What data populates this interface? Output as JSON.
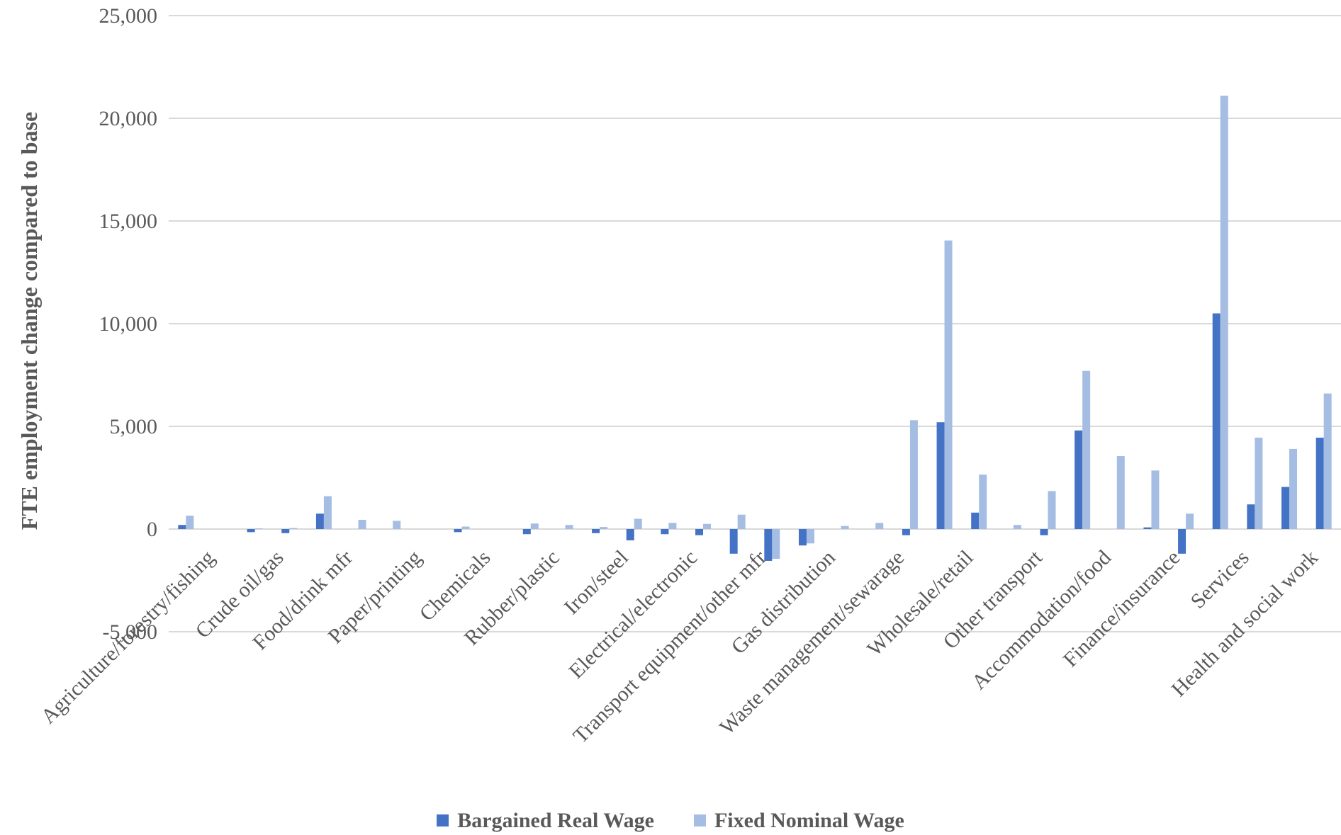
{
  "colors": {
    "bargained": "#4472C4",
    "fixed": "#A5BDE3",
    "grid": "#D9D9D9",
    "text": "#595959"
  },
  "chart_data": {
    "type": "bar",
    "title": "",
    "xlabel": "",
    "ylabel": "FTE employment change compared to base",
    "ylim": [
      -5000,
      25000
    ],
    "yticks": [
      -5000,
      0,
      5000,
      10000,
      15000,
      20000,
      25000
    ],
    "ytick_labels": [
      "-5,000",
      "0",
      "5,000",
      "10,000",
      "15,000",
      "20,000",
      "25,000"
    ],
    "grid": true,
    "legend_position": "bottom",
    "categories": [
      "Agriculture/forestry/fishing",
      "",
      "Crude oil/gas",
      "",
      "Food/drink mfr",
      "",
      "Paper/printing",
      "",
      "Chemicals",
      "",
      "Rubber/plastic",
      "",
      "Iron/steel",
      "",
      "Electrical/electronic",
      "",
      "Transport equipment/other mfr",
      "",
      "Gas distribution",
      "",
      "Waste management/sewarage",
      "",
      "Wholesale/retail",
      "",
      "Other transport",
      "",
      "Accommodation/food",
      "",
      "Finance/insurance",
      "",
      "Services",
      "",
      "Health and social work",
      ""
    ],
    "series": [
      {
        "name": "Bargained Real Wage",
        "values": [
          200,
          0,
          -150,
          -200,
          750,
          0,
          0,
          0,
          -150,
          0,
          -250,
          0,
          -200,
          -550,
          -250,
          -300,
          -1200,
          -1550,
          -800,
          0,
          0,
          -300,
          5200,
          800,
          0,
          -300,
          4800,
          0,
          80,
          -1200,
          10500,
          1200,
          2050,
          4450
        ]
      },
      {
        "name": "Fixed Nominal Wage",
        "values": [
          650,
          0,
          30,
          50,
          1600,
          450,
          400,
          0,
          120,
          0,
          270,
          200,
          100,
          500,
          300,
          250,
          700,
          -1450,
          -700,
          150,
          300,
          5300,
          14050,
          2650,
          200,
          1850,
          7700,
          3550,
          2850,
          750,
          21100,
          4450,
          3900,
          6600
        ]
      }
    ]
  }
}
